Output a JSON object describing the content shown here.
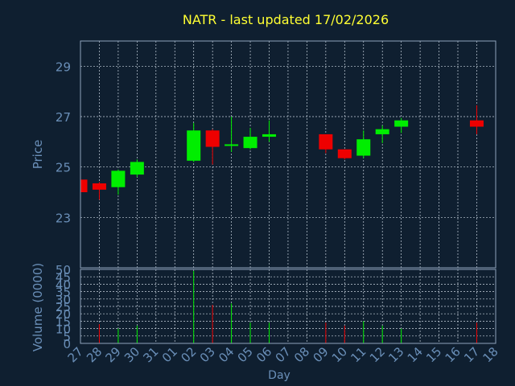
{
  "title": "NATR - last updated 17/02/2026",
  "colors": {
    "background": "#0f1f30",
    "title": "#ffff33",
    "axis_text": "#6a8fb8",
    "up": "#00ee00",
    "down": "#ee0000"
  },
  "chart_data": [
    {
      "type": "candlestick",
      "title": "NATR - last updated 17/02/2026",
      "xlabel": "",
      "ylabel": "Price",
      "ylim": [
        21,
        30
      ],
      "yticks": [
        23,
        25,
        27,
        29
      ],
      "x_categories": [
        "27",
        "28",
        "29",
        "30",
        "31",
        "01",
        "02",
        "03",
        "04",
        "05",
        "06",
        "07",
        "08",
        "09",
        "10",
        "11",
        "12",
        "13",
        "14",
        "15",
        "16",
        "17",
        "18"
      ],
      "grid": true,
      "candles": [
        {
          "day": "27",
          "open": 24.5,
          "high": 24.5,
          "low": 24.0,
          "close": 24.0
        },
        {
          "day": "28",
          "open": 24.35,
          "high": 24.4,
          "low": 23.7,
          "close": 24.1
        },
        {
          "day": "29",
          "open": 24.2,
          "high": 24.9,
          "low": 23.9,
          "close": 24.85
        },
        {
          "day": "30",
          "open": 24.7,
          "high": 25.3,
          "low": 24.6,
          "close": 25.2
        },
        {
          "day": "02",
          "open": 25.25,
          "high": 26.75,
          "low": 25.2,
          "close": 26.45
        },
        {
          "day": "03",
          "open": 26.45,
          "high": 26.5,
          "low": 25.1,
          "close": 25.8
        },
        {
          "day": "04",
          "open": 25.85,
          "high": 27.0,
          "low": 25.6,
          "close": 25.9
        },
        {
          "day": "05",
          "open": 25.75,
          "high": 26.55,
          "low": 25.7,
          "close": 26.2
        },
        {
          "day": "06",
          "open": 26.2,
          "high": 26.85,
          "low": 26.0,
          "close": 26.3
        },
        {
          "day": "09",
          "open": 26.3,
          "high": 26.3,
          "low": 25.55,
          "close": 25.7
        },
        {
          "day": "10",
          "open": 25.7,
          "high": 25.7,
          "low": 25.3,
          "close": 25.35
        },
        {
          "day": "11",
          "open": 25.45,
          "high": 26.45,
          "low": 25.35,
          "close": 26.1
        },
        {
          "day": "12",
          "open": 26.3,
          "high": 26.65,
          "low": 25.95,
          "close": 26.5
        },
        {
          "day": "13",
          "open": 26.6,
          "high": 26.95,
          "low": 26.35,
          "close": 26.85
        },
        {
          "day": "17",
          "open": 26.85,
          "high": 27.45,
          "low": 26.3,
          "close": 26.6
        }
      ]
    },
    {
      "type": "bar",
      "xlabel": "Day",
      "ylabel": "Volume (0000)",
      "ylim": [
        0,
        50
      ],
      "yticks": [
        0,
        5,
        10,
        15,
        20,
        25,
        30,
        35,
        40,
        45,
        50
      ],
      "x_categories": [
        "27",
        "28",
        "29",
        "30",
        "31",
        "01",
        "02",
        "03",
        "04",
        "05",
        "06",
        "07",
        "08",
        "09",
        "10",
        "11",
        "12",
        "13",
        "14",
        "15",
        "16",
        "17",
        "18"
      ],
      "grid": true,
      "volumes": [
        {
          "day": "28",
          "value": 13,
          "direction": "down"
        },
        {
          "day": "29",
          "value": 10,
          "direction": "up"
        },
        {
          "day": "30",
          "value": 12,
          "direction": "up"
        },
        {
          "day": "02",
          "value": 49,
          "direction": "up"
        },
        {
          "day": "03",
          "value": 26,
          "direction": "down"
        },
        {
          "day": "04",
          "value": 27,
          "direction": "up"
        },
        {
          "day": "05",
          "value": 14,
          "direction": "up"
        },
        {
          "day": "06",
          "value": 14,
          "direction": "up"
        },
        {
          "day": "09",
          "value": 14,
          "direction": "down"
        },
        {
          "day": "10",
          "value": 12,
          "direction": "down"
        },
        {
          "day": "11",
          "value": 15,
          "direction": "up"
        },
        {
          "day": "12",
          "value": 12,
          "direction": "up"
        },
        {
          "day": "13",
          "value": 10,
          "direction": "up"
        },
        {
          "day": "17",
          "value": 14,
          "direction": "down"
        }
      ]
    }
  ]
}
